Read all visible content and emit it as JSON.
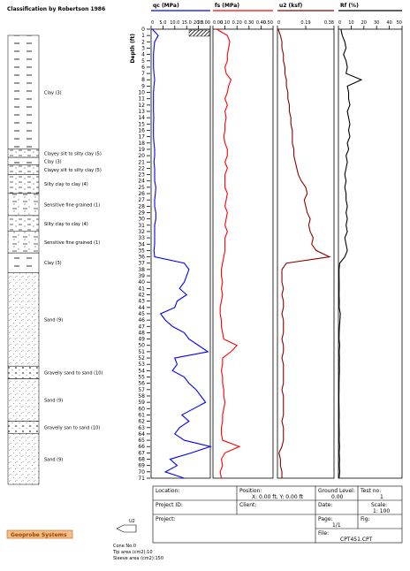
{
  "classification": {
    "title": "Classification by Robertson 1986",
    "layers": [
      {
        "label": "Clay (3)",
        "top": 0,
        "bottom": 18
      },
      {
        "label": "Clayey silt to silty clay (5)",
        "top": 18,
        "bottom": 19.3
      },
      {
        "label": "Clay (3)",
        "top": 19.3,
        "bottom": 20.5
      },
      {
        "label": "Clayey silt to silty clay (5)",
        "top": 20.5,
        "bottom": 22
      },
      {
        "label": "Silty clay to clay (4)",
        "top": 22,
        "bottom": 25
      },
      {
        "label": "Sensitive fine grained (1)",
        "top": 25,
        "bottom": 28.5
      },
      {
        "label": "Silty clay to clay (4)",
        "top": 28.5,
        "bottom": 31
      },
      {
        "label": "Sensitive fine grained (1)",
        "top": 31,
        "bottom": 34.4
      },
      {
        "label": "Clay (3)",
        "top": 34.4,
        "bottom": 37.5
      },
      {
        "label": "Sand (9)",
        "top": 37.5,
        "bottom": 52.3
      },
      {
        "label": "Gravelly sand to sand (10)",
        "top": 52.3,
        "bottom": 54.3
      },
      {
        "label": "Sand (9)",
        "top": 54.3,
        "bottom": 61
      },
      {
        "label": "Gravelly san to sand (10)",
        "top": 61,
        "bottom": 63
      },
      {
        "label": "Sand (9)",
        "top": 63,
        "bottom": 71
      }
    ]
  },
  "chart_data": {
    "type": "line",
    "y_label": "Depth (ft)",
    "ylim": [
      0,
      71
    ],
    "yticks": [
      0,
      1,
      2,
      3,
      4,
      5,
      6,
      7,
      8,
      9,
      10,
      11,
      12,
      13,
      14,
      15,
      16,
      17,
      18,
      19,
      20,
      21,
      22,
      23,
      24,
      25,
      26,
      27,
      28,
      29,
      30,
      31,
      32,
      33,
      34,
      35,
      36,
      37,
      38,
      39,
      40,
      41,
      42,
      43,
      44,
      45,
      46,
      47,
      48,
      49,
      50,
      51,
      52,
      53,
      54,
      55,
      56,
      57,
      58,
      59,
      60,
      61,
      62,
      63,
      64,
      65,
      66,
      67,
      68,
      69,
      70,
      71
    ],
    "depth": [
      0,
      1,
      2,
      3,
      4,
      5,
      6,
      7,
      8,
      9,
      10,
      11,
      12,
      13,
      14,
      15,
      16,
      17,
      18,
      19,
      20,
      21,
      22,
      23,
      24,
      25,
      26,
      27,
      28,
      29,
      30,
      31,
      32,
      33,
      34,
      35,
      36,
      37,
      38,
      39,
      40,
      41,
      42,
      43,
      44,
      45,
      46,
      47,
      48,
      49,
      50,
      51,
      52,
      53,
      54,
      55,
      56,
      57,
      58,
      59,
      60,
      61,
      62,
      63,
      64,
      65,
      66,
      67,
      68,
      69,
      70,
      71
    ],
    "panels": [
      {
        "title": "qc (MPa)",
        "color": "#0000ff",
        "xlim": [
          0,
          25
        ],
        "xticks": [
          0,
          {
            "value": 5,
            "label": "5.0"
          },
          {
            "value": 10,
            "label": "10.0"
          },
          {
            "value": 15,
            "label": "15.0"
          },
          {
            "value": 20,
            "label": "20.0"
          },
          {
            "value": 25,
            "label": "25.00"
          }
        ],
        "values": [
          0.5,
          3,
          1.5,
          1.2,
          1,
          1,
          1,
          1.2,
          1.5,
          1.2,
          1,
          1,
          1,
          1,
          1.1,
          1,
          1,
          1,
          1.2,
          1.5,
          1.5,
          1.2,
          1.5,
          1.5,
          1.5,
          2,
          1.8,
          1.5,
          1.5,
          2,
          2,
          1.5,
          1.5,
          1.5,
          1.5,
          1.2,
          1.5,
          14,
          16,
          15,
          14,
          12,
          15,
          11,
          10,
          4,
          6,
          9,
          14,
          16,
          20,
          24,
          10,
          11,
          9,
          14,
          16,
          19,
          21,
          23,
          18,
          13,
          16,
          12,
          10,
          14,
          25,
          17,
          8,
          11,
          6,
          14
        ]
      },
      {
        "title": "fs (MPa)",
        "color": "#ff0000",
        "xlim": [
          0,
          0.5
        ],
        "xticks": [
          {
            "value": 0,
            "label": "0.00"
          },
          {
            "value": 0.1,
            "label": "0.10"
          },
          {
            "value": 0.2,
            "label": "0.20"
          },
          {
            "value": 0.3,
            "label": "0.30"
          },
          {
            "value": 0.4,
            "label": "0.40"
          },
          {
            "value": 0.5,
            "label": "0.50"
          }
        ],
        "values": [
          0.03,
          0.12,
          0.14,
          0.13,
          0.12,
          0.12,
          0.1,
          0.11,
          0.15,
          0.13,
          0.12,
          0.1,
          0.12,
          0.1,
          0.11,
          0.1,
          0.1,
          0.09,
          0.1,
          0.12,
          0.12,
          0.1,
          0.12,
          0.1,
          0.1,
          0.1,
          0.12,
          0.11,
          0.1,
          0.12,
          0.11,
          0.1,
          0.12,
          0.1,
          0.1,
          0.1,
          0.09,
          0.08,
          0.07,
          0.07,
          0.08,
          0.07,
          0.08,
          0.07,
          0.06,
          0.06,
          0.07,
          0.07,
          0.08,
          0.09,
          0.2,
          0.15,
          0.08,
          0.08,
          0.07,
          0.08,
          0.08,
          0.09,
          0.09,
          0.1,
          0.09,
          0.08,
          0.08,
          0.07,
          0.07,
          0.08,
          0.22,
          0.1,
          0.07,
          0.08,
          0.06,
          0.07
        ]
      },
      {
        "title": "u2 (ksf)",
        "color": "#8b0000",
        "xlim": [
          0,
          0.38
        ],
        "xticks": [
          0,
          0.19,
          0.38
        ],
        "values": [
          0.005,
          0.02,
          0.03,
          0.03,
          0.04,
          0.04,
          0.05,
          0.05,
          0.06,
          0.06,
          0.07,
          0.07,
          0.08,
          0.08,
          0.09,
          0.09,
          0.1,
          0.1,
          0.1,
          0.11,
          0.11,
          0.12,
          0.13,
          0.14,
          0.16,
          0.19,
          0.2,
          0.18,
          0.19,
          0.2,
          0.22,
          0.21,
          0.22,
          0.24,
          0.23,
          0.26,
          0.35,
          0.06,
          0.03,
          0.03,
          0.03,
          0.04,
          0.03,
          0.04,
          0.04,
          0.03,
          0.04,
          0.04,
          0.04,
          0.03,
          0.04,
          0.04,
          0.03,
          0.04,
          0.04,
          0.04,
          0.04,
          0.03,
          0.04,
          0.04,
          0.04,
          0.04,
          0.03,
          0.04,
          0.04,
          0.04,
          0.03,
          0.01,
          0.02,
          0.02,
          0.03,
          0.03
        ]
      },
      {
        "title": "Rf (%)",
        "color": "#000000",
        "xlim": [
          0,
          50
        ],
        "xticks": [
          0,
          10,
          20,
          30,
          40,
          50
        ],
        "values": [
          2,
          3,
          5,
          6,
          4,
          6,
          7,
          6,
          18,
          7,
          8,
          8,
          9,
          7,
          8,
          9,
          8,
          9,
          7,
          8,
          6,
          7,
          6,
          5,
          6,
          5,
          6,
          6,
          7,
          6,
          7,
          6,
          7,
          5,
          6,
          7,
          5,
          1,
          0.5,
          0.5,
          0.6,
          0.6,
          0.5,
          0.7,
          0.6,
          1.5,
          1.2,
          0.8,
          0.6,
          0.5,
          1,
          0.6,
          0.8,
          0.7,
          0.8,
          0.6,
          0.5,
          0.5,
          0.4,
          0.4,
          0.5,
          0.6,
          0.5,
          0.6,
          0.7,
          0.6,
          0.9,
          0.6,
          0.9,
          0.7,
          1,
          0.5
        ]
      }
    ]
  },
  "info": {
    "location": "Location:",
    "position": "Position:",
    "position_value": "X: 0.00 ft, Y: 0.00 ft",
    "ground_level": "Ground Level:",
    "ground_level_value": "0.00",
    "test_no": "Test no:",
    "test_no_value": "1",
    "project_id": "Project ID:",
    "client": "Client:",
    "date": "Date:",
    "scale": "Scale:",
    "scale_value": "1: 100",
    "project": "Project:",
    "page": "Page:",
    "page_value": "1/1",
    "fig": "Fig:",
    "file": "File:",
    "file_value": "CPT451.CPT"
  },
  "cone": {
    "logo": "Geoprobe Systems",
    "sensor": "U2",
    "cone_no": "Cone No:0",
    "tip_area": "Tip area (cm2):10",
    "sleeve_area": "Sleeve area (cm2):150"
  }
}
